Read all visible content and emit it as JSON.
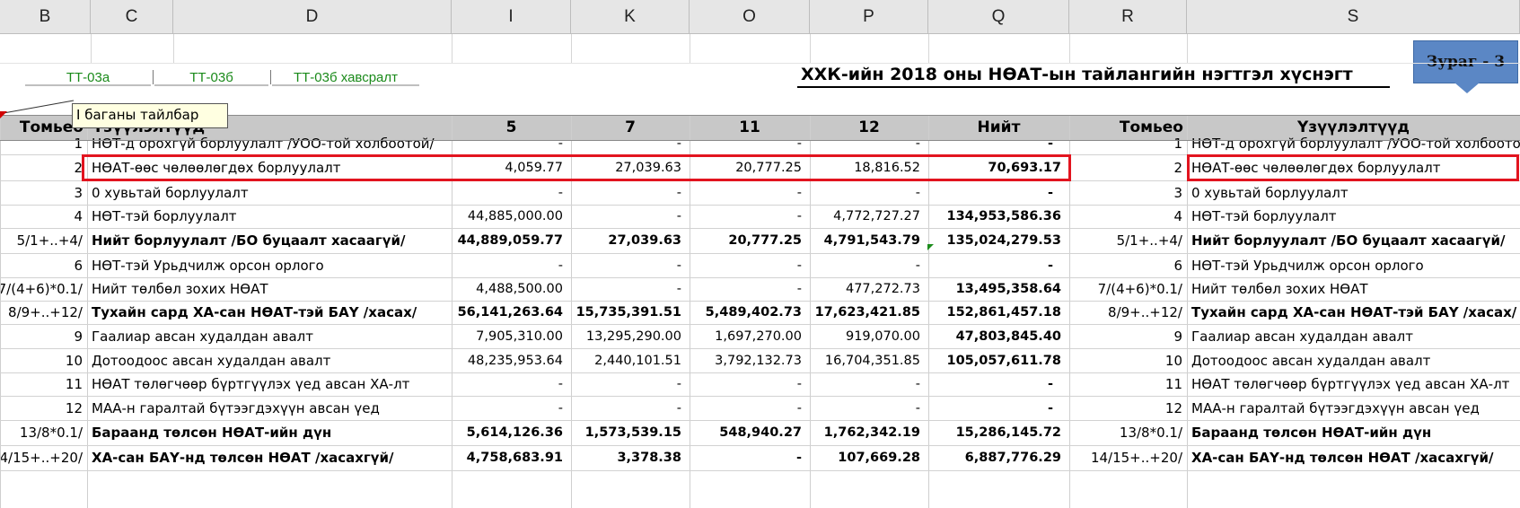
{
  "columns": [
    "B",
    "C",
    "D",
    "I",
    "K",
    "O",
    "P",
    "Q",
    "R",
    "S"
  ],
  "tabs": [
    "ТТ-03а",
    "ТТ-03б",
    "ТТ-03б хавсралт"
  ],
  "title": "ХХК-ийн 2018 оны НӨАТ-ын тайлангийн нэгтгэл хүснэгт",
  "badge": "Зураг - 3",
  "comment": "I баганы тайлбар",
  "header": {
    "index": "Томьео",
    "indicator": "Үзүүлэлтүүд",
    "c5": "5",
    "c7": "7",
    "c11": "11",
    "c12": "12",
    "total": "Нийт",
    "index_r": "Томьео",
    "indicator_r": "Үзүүлэлтүүд"
  },
  "rows": [
    {
      "idx": "1",
      "label": "НӨТ-д орохгүй борлуулалт /УОО-той холбоотой/",
      "v5": "-",
      "v7": "-",
      "v11": "-",
      "v12": "-",
      "total": "-",
      "bold": false
    },
    {
      "idx": "2",
      "label": "НӨАТ-өөс чөлөөлөгдөх борлуулалт",
      "v5": "4,059.77",
      "v7": "27,039.63",
      "v11": "20,777.25",
      "v12": "18,816.52",
      "total": "70,693.17",
      "bold": false
    },
    {
      "idx": "3",
      "label": "0 хувьтай борлуулалт",
      "v5": "-",
      "v7": "-",
      "v11": "-",
      "v12": "-",
      "total": "-",
      "bold": false
    },
    {
      "idx": "4",
      "label": "НӨТ-тэй борлуулалт",
      "v5": "44,885,000.00",
      "v7": "-",
      "v11": "-",
      "v12": "4,772,727.27",
      "total": "134,953,586.36",
      "bold": false
    },
    {
      "idx": "5/1+..+4/",
      "label": "Нийт борлуулалт /БО буцаалт хасаагүй/",
      "v5": "44,889,059.77",
      "v7": "27,039.63",
      "v11": "20,777.25",
      "v12": "4,791,543.79",
      "total": "135,024,279.53",
      "bold": true
    },
    {
      "idx": "6",
      "label": "НӨТ-тэй Урьдчилж орсон орлого",
      "v5": "-",
      "v7": "-",
      "v11": "-",
      "v12": "-",
      "total": "-",
      "bold": false
    },
    {
      "idx": "7/(4+6)*0.1/",
      "label": "Нийт төлбөл зохих НӨАТ",
      "v5": "4,488,500.00",
      "v7": "-",
      "v11": "-",
      "v12": "477,272.73",
      "total": "13,495,358.64",
      "bold": false
    },
    {
      "idx": "8/9+..+12/",
      "label": "Тухайн сард ХА-сан НӨАТ-тэй БАҮ /хасах/",
      "v5": "56,141,263.64",
      "v7": "15,735,391.51",
      "v11": "5,489,402.73",
      "v12": "17,623,421.85",
      "total": "152,861,457.18",
      "bold": true
    },
    {
      "idx": "9",
      "label": "Гаалиар авсан худалдан авалт",
      "v5": "7,905,310.00",
      "v7": "13,295,290.00",
      "v11": "1,697,270.00",
      "v12": "919,070.00",
      "total": "47,803,845.40",
      "bold": false
    },
    {
      "idx": "10",
      "label": "Дотоодоос авсан худалдан авалт",
      "v5": "48,235,953.64",
      "v7": "2,440,101.51",
      "v11": "3,792,132.73",
      "v12": "16,704,351.85",
      "total": "105,057,611.78",
      "bold": false
    },
    {
      "idx": "11",
      "label": "НӨАТ төлөгчөөр бүртгүүлэх үед авсан ХА-лт",
      "v5": "-",
      "v7": "-",
      "v11": "-",
      "v12": "-",
      "total": "-",
      "bold": false
    },
    {
      "idx": "12",
      "label": "МАА-н гаралтай бүтээгдэхүүн авсан үед",
      "v5": "-",
      "v7": "-",
      "v11": "-",
      "v12": "-",
      "total": "-",
      "bold": false
    },
    {
      "idx": "13/8*0.1/",
      "label": "Бараанд төлсөн НӨАТ-ийн дүн",
      "v5": "5,614,126.36",
      "v7": "1,573,539.15",
      "v11": "548,940.27",
      "v12": "1,762,342.19",
      "total": "15,286,145.72",
      "bold": true
    },
    {
      "idx": "14/15+..+20/",
      "label": "ХА-сан БАҮ-нд төлсөн НӨАТ /хасахгүй/",
      "v5": "4,758,683.91",
      "v7": "3,378.38",
      "v11": "-",
      "v12": "107,669.28",
      "total": "6,887,776.29",
      "bold": true
    }
  ],
  "colors": {
    "highlight": "#e2141f",
    "header_band": "#c8c8c8",
    "badge": "#5b87c5",
    "link": "#1a8a1a"
  }
}
